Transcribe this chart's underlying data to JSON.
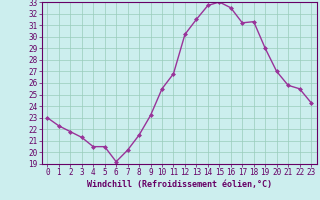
{
  "x": [
    0,
    1,
    2,
    3,
    4,
    5,
    6,
    7,
    8,
    9,
    10,
    11,
    12,
    13,
    14,
    15,
    16,
    17,
    18,
    19,
    20,
    21,
    22,
    23
  ],
  "y": [
    23.0,
    22.3,
    21.8,
    21.3,
    20.5,
    20.5,
    19.2,
    20.2,
    21.5,
    23.2,
    25.5,
    26.8,
    30.2,
    31.5,
    32.7,
    33.0,
    32.5,
    31.2,
    31.3,
    29.0,
    27.0,
    25.8,
    25.5,
    24.3
  ],
  "line_color": "#993399",
  "marker": "D",
  "marker_size": 2,
  "bg_color": "#cceeee",
  "grid_color": "#99ccbb",
  "xlabel": "Windchill (Refroidissement éolien,°C)",
  "ylim": [
    19,
    33
  ],
  "xlim": [
    -0.5,
    23.5
  ],
  "yticks": [
    19,
    20,
    21,
    22,
    23,
    24,
    25,
    26,
    27,
    28,
    29,
    30,
    31,
    32,
    33
  ],
  "xticks": [
    0,
    1,
    2,
    3,
    4,
    5,
    6,
    7,
    8,
    9,
    10,
    11,
    12,
    13,
    14,
    15,
    16,
    17,
    18,
    19,
    20,
    21,
    22,
    23
  ],
  "tick_color": "#660066",
  "label_color": "#660066",
  "spine_color": "#660066",
  "font_size": 5.5,
  "xlabel_size": 6.0,
  "line_width": 1.0
}
